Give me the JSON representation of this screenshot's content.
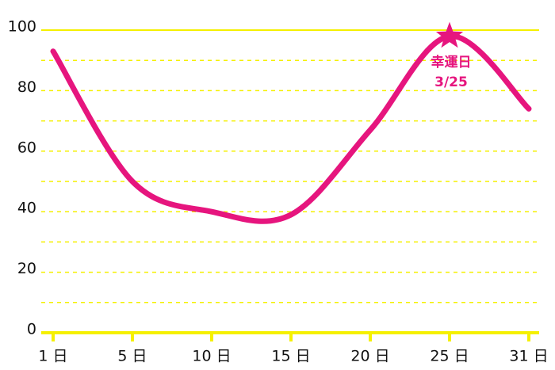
{
  "chart_data": {
    "type": "line",
    "categories": [
      "1 日",
      "5 日",
      "10 日",
      "15 日",
      "20 日",
      "25 日",
      "31 日"
    ],
    "series": [
      {
        "color": "#e6157e",
        "values": [
          93,
          50,
          40,
          39,
          67,
          98,
          74
        ]
      }
    ],
    "ylim": [
      0,
      100
    ],
    "yticks": [
      0,
      20,
      40,
      60,
      80,
      100
    ],
    "minor_yticks": [
      10,
      30,
      50,
      70,
      90
    ],
    "grid": true,
    "grid_color": "#f5f000",
    "annotation": {
      "lines": [
        "幸運日",
        "3/25"
      ]
    }
  }
}
